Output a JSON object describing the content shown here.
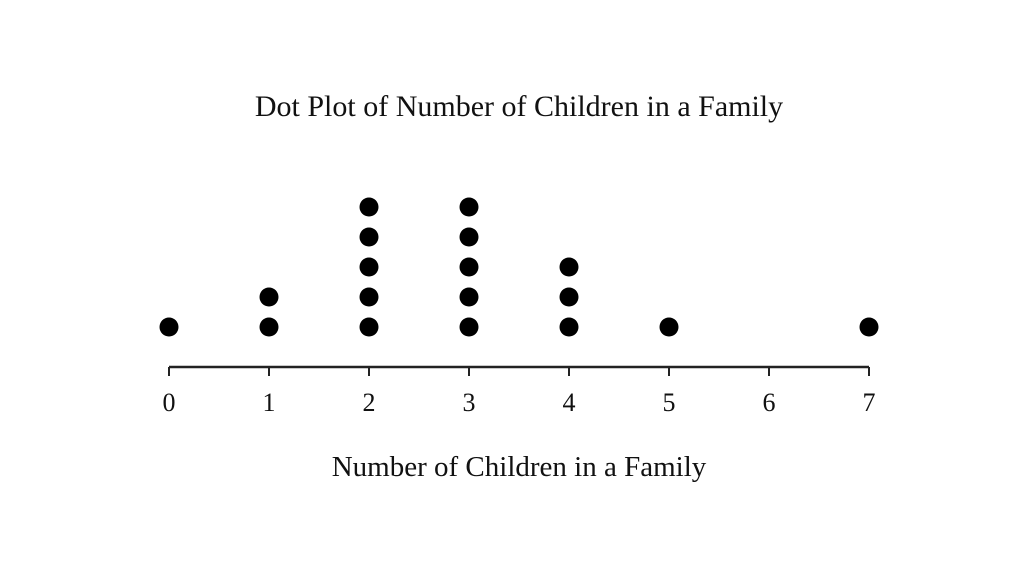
{
  "chart_data": {
    "type": "scatter",
    "subtype": "dot-plot",
    "title": "Dot Plot of Number of Children in a Family",
    "xlabel": "Number of Children in a Family",
    "ylabel": "",
    "xlim": [
      0,
      7
    ],
    "ticks": [
      0,
      1,
      2,
      3,
      4,
      5,
      6,
      7
    ],
    "grid": false,
    "legend": "none",
    "dot_color": "#000000",
    "axis_color": "#222222",
    "points": [
      {
        "x": 0,
        "count": 1
      },
      {
        "x": 1,
        "count": 2
      },
      {
        "x": 2,
        "count": 5
      },
      {
        "x": 3,
        "count": 5
      },
      {
        "x": 4,
        "count": 3
      },
      {
        "x": 5,
        "count": 1
      },
      {
        "x": 6,
        "count": 0
      },
      {
        "x": 7,
        "count": 1
      }
    ]
  }
}
